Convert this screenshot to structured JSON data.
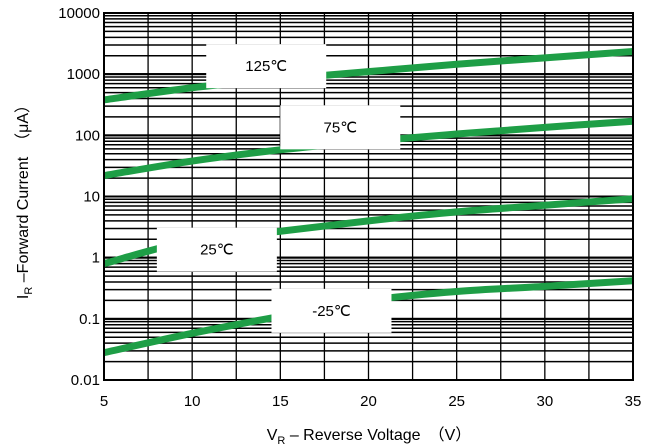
{
  "chart_data": {
    "type": "line",
    "title": "",
    "xlabel": {
      "main": "V",
      "sub": "R",
      "rest": " – Reverse Voltage　（V）"
    },
    "ylabel": {
      "main": "I",
      "sub": "R",
      "rest": " –Forward Current　（μA）"
    },
    "xlim": [
      5,
      35
    ],
    "ylim": [
      0.01,
      10000
    ],
    "yscale": "log",
    "xticks": [
      5,
      10,
      15,
      20,
      25,
      30,
      35
    ],
    "xtick_labels": [
      "5",
      "10",
      "15",
      "20",
      "25",
      "30",
      "35"
    ],
    "yticks": [
      0.01,
      0.1,
      1,
      10,
      100,
      1000,
      10000
    ],
    "ytick_labels": [
      "0.01",
      "0.1",
      "1",
      "10",
      "100",
      "1000",
      "10000"
    ],
    "grid": true,
    "line_color": "#1e9e46",
    "series": [
      {
        "name": "125℃",
        "x": [
          5,
          10,
          15,
          20,
          25,
          30,
          35
        ],
        "y": [
          380,
          600,
          830,
          1100,
          1450,
          1850,
          2350
        ]
      },
      {
        "name": "75℃",
        "x": [
          5,
          10,
          15,
          20,
          25,
          30,
          35
        ],
        "y": [
          22,
          38,
          58,
          80,
          105,
          135,
          170
        ]
      },
      {
        "name": "25℃",
        "x": [
          5,
          10,
          15,
          20,
          25,
          30,
          35
        ],
        "y": [
          0.8,
          1.9,
          2.7,
          4,
          5.6,
          7.2,
          9.2
        ]
      },
      {
        "name": "-25℃",
        "x": [
          5,
          10,
          15,
          20,
          25,
          30,
          35
        ],
        "y": [
          0.028,
          0.058,
          0.11,
          0.2,
          0.28,
          0.34,
          0.42
        ]
      }
    ]
  }
}
